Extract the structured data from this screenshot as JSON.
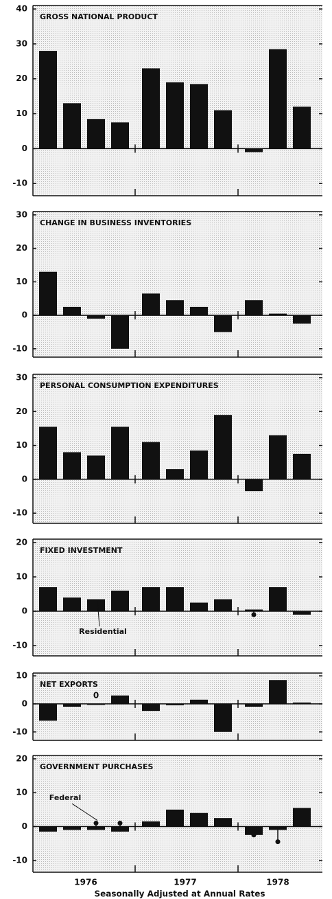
{
  "chart_data": [
    {
      "type": "bar",
      "title": "GROSS NATIONAL PRODUCT",
      "categories": [
        null,
        null,
        null,
        null,
        null,
        null,
        null,
        null,
        null,
        null,
        null
      ],
      "series": [
        {
          "color": "#111111",
          "values": [
            28,
            13,
            8.5,
            7.5,
            23,
            19,
            18.5,
            11,
            -1,
            28.5,
            12
          ]
        }
      ],
      "ylim": [
        -13.5,
        41
      ],
      "yticks": [
        -10,
        0,
        10,
        20,
        30,
        40
      ]
    },
    {
      "type": "bar",
      "title": "CHANGE IN BUSINESS INVENTORIES",
      "categories": [
        null,
        null,
        null,
        null,
        null,
        null,
        null,
        null,
        null,
        null,
        null
      ],
      "series": [
        {
          "color": "#111111",
          "values": [
            13,
            2.5,
            -1,
            -10,
            6.5,
            4.5,
            2.5,
            -5,
            4.5,
            0.5,
            -2.5
          ]
        }
      ],
      "ylim": [
        -12.5,
        31
      ],
      "yticks": [
        -10,
        0,
        10,
        20,
        30
      ]
    },
    {
      "type": "bar",
      "title": "PERSONAL CONSUMPTION EXPENDITURES",
      "categories": [
        null,
        null,
        null,
        null,
        null,
        null,
        null,
        null,
        null,
        null,
        null
      ],
      "series": [
        {
          "color": "#111111",
          "values": [
            15.5,
            8,
            7,
            15.5,
            11,
            3,
            8.5,
            19,
            -3.5,
            13,
            7.5
          ]
        }
      ],
      "ylim": [
        -13,
        31
      ],
      "yticks": [
        -10,
        0,
        10,
        20,
        30
      ]
    },
    {
      "type": "bar",
      "title": "FIXED INVESTMENT",
      "categories": [
        null,
        null,
        null,
        null,
        null,
        null,
        null,
        null,
        null,
        null,
        null
      ],
      "series": [
        {
          "color": "#111111",
          "values": [
            7,
            4,
            3.5,
            6,
            7,
            7,
            2.5,
            3.5,
            0.5,
            7,
            -1
          ]
        },
        {
          "name": "Residential",
          "color": "#111111",
          "values": [
            null,
            null,
            null,
            null,
            null,
            null,
            null,
            null,
            -1,
            null,
            null
          ]
        }
      ],
      "ylim": [
        -13,
        21
      ],
      "yticks": [
        -10,
        0,
        10,
        20
      ]
    },
    {
      "type": "bar",
      "title": "NET EXPORTS",
      "categories": [
        null,
        null,
        null,
        null,
        null,
        null,
        null,
        null,
        null,
        null,
        null
      ],
      "series": [
        {
          "color": "#111111",
          "values": [
            -6,
            -1,
            0,
            3,
            -2.5,
            -0.5,
            1.5,
            -10,
            -1,
            8.5,
            0.5
          ],
          "value_labels": [
            null,
            null,
            "0",
            null,
            null,
            null,
            null,
            null,
            null,
            null,
            null
          ]
        }
      ],
      "ylim": [
        -13,
        11
      ],
      "yticks": [
        -10,
        0,
        10
      ]
    },
    {
      "type": "bar",
      "title": "GOVERNMENT PURCHASES",
      "categories": [
        null,
        null,
        null,
        null,
        null,
        null,
        null,
        null,
        null,
        null,
        null
      ],
      "series": [
        {
          "color": "#111111",
          "values": [
            -1.5,
            -1,
            -1,
            -1.5,
            1.5,
            5,
            4,
            2.5,
            -2.5,
            -1,
            5.5
          ]
        },
        {
          "name": "Federal",
          "color": "#111111",
          "values": [
            null,
            null,
            1,
            1,
            null,
            null,
            null,
            null,
            -2.5,
            -4.5,
            null
          ]
        }
      ],
      "ylim": [
        -13.5,
        21
      ],
      "yticks": [
        -10,
        0,
        10,
        20
      ]
    }
  ],
  "x_groups": [
    "1976",
    "1977",
    "1978"
  ],
  "x_label": "Seasonally Adjusted at Annual Rates"
}
